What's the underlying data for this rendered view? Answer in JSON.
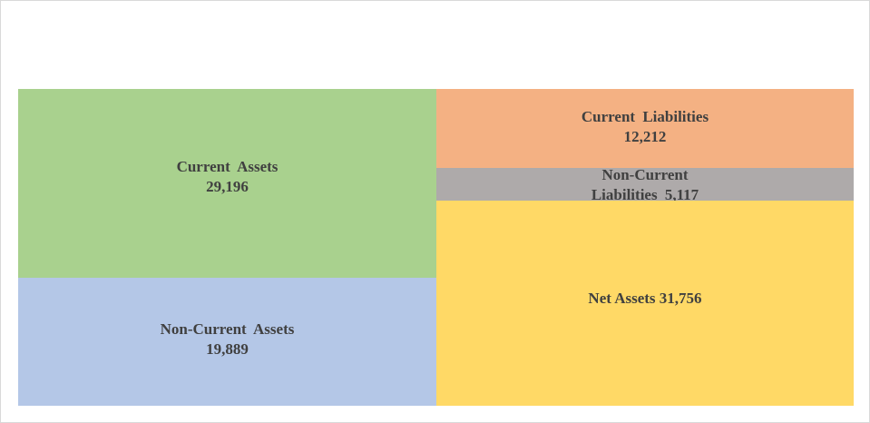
{
  "chart_data": {
    "type": "treemap",
    "title": "",
    "blocks": [
      {
        "id": "current_assets",
        "group": "assets",
        "label": "Current  Assets",
        "value": 29196,
        "value_label": "29,196",
        "color": "#a9d18e"
      },
      {
        "id": "non_current_assets",
        "group": "assets",
        "label": "Non-Current  Assets",
        "value": 19889,
        "value_label": "19,889",
        "color": "#b4c7e7"
      },
      {
        "id": "current_liabilities",
        "group": "liabilities_and_net_assets",
        "label": "Current  Liabilities",
        "value": 12212,
        "value_label": "12,212",
        "color": "#f4b183"
      },
      {
        "id": "non_current_liabilities",
        "group": "liabilities_and_net_assets",
        "label_line1": "Non-Current",
        "label_line2": "Liabilities  5,117",
        "value": 5117,
        "color": "#aeaaaa"
      },
      {
        "id": "net_assets",
        "group": "liabilities_and_net_assets",
        "label": "Net Assets 31,756",
        "value": 31756,
        "color": "#ffd966"
      }
    ]
  }
}
